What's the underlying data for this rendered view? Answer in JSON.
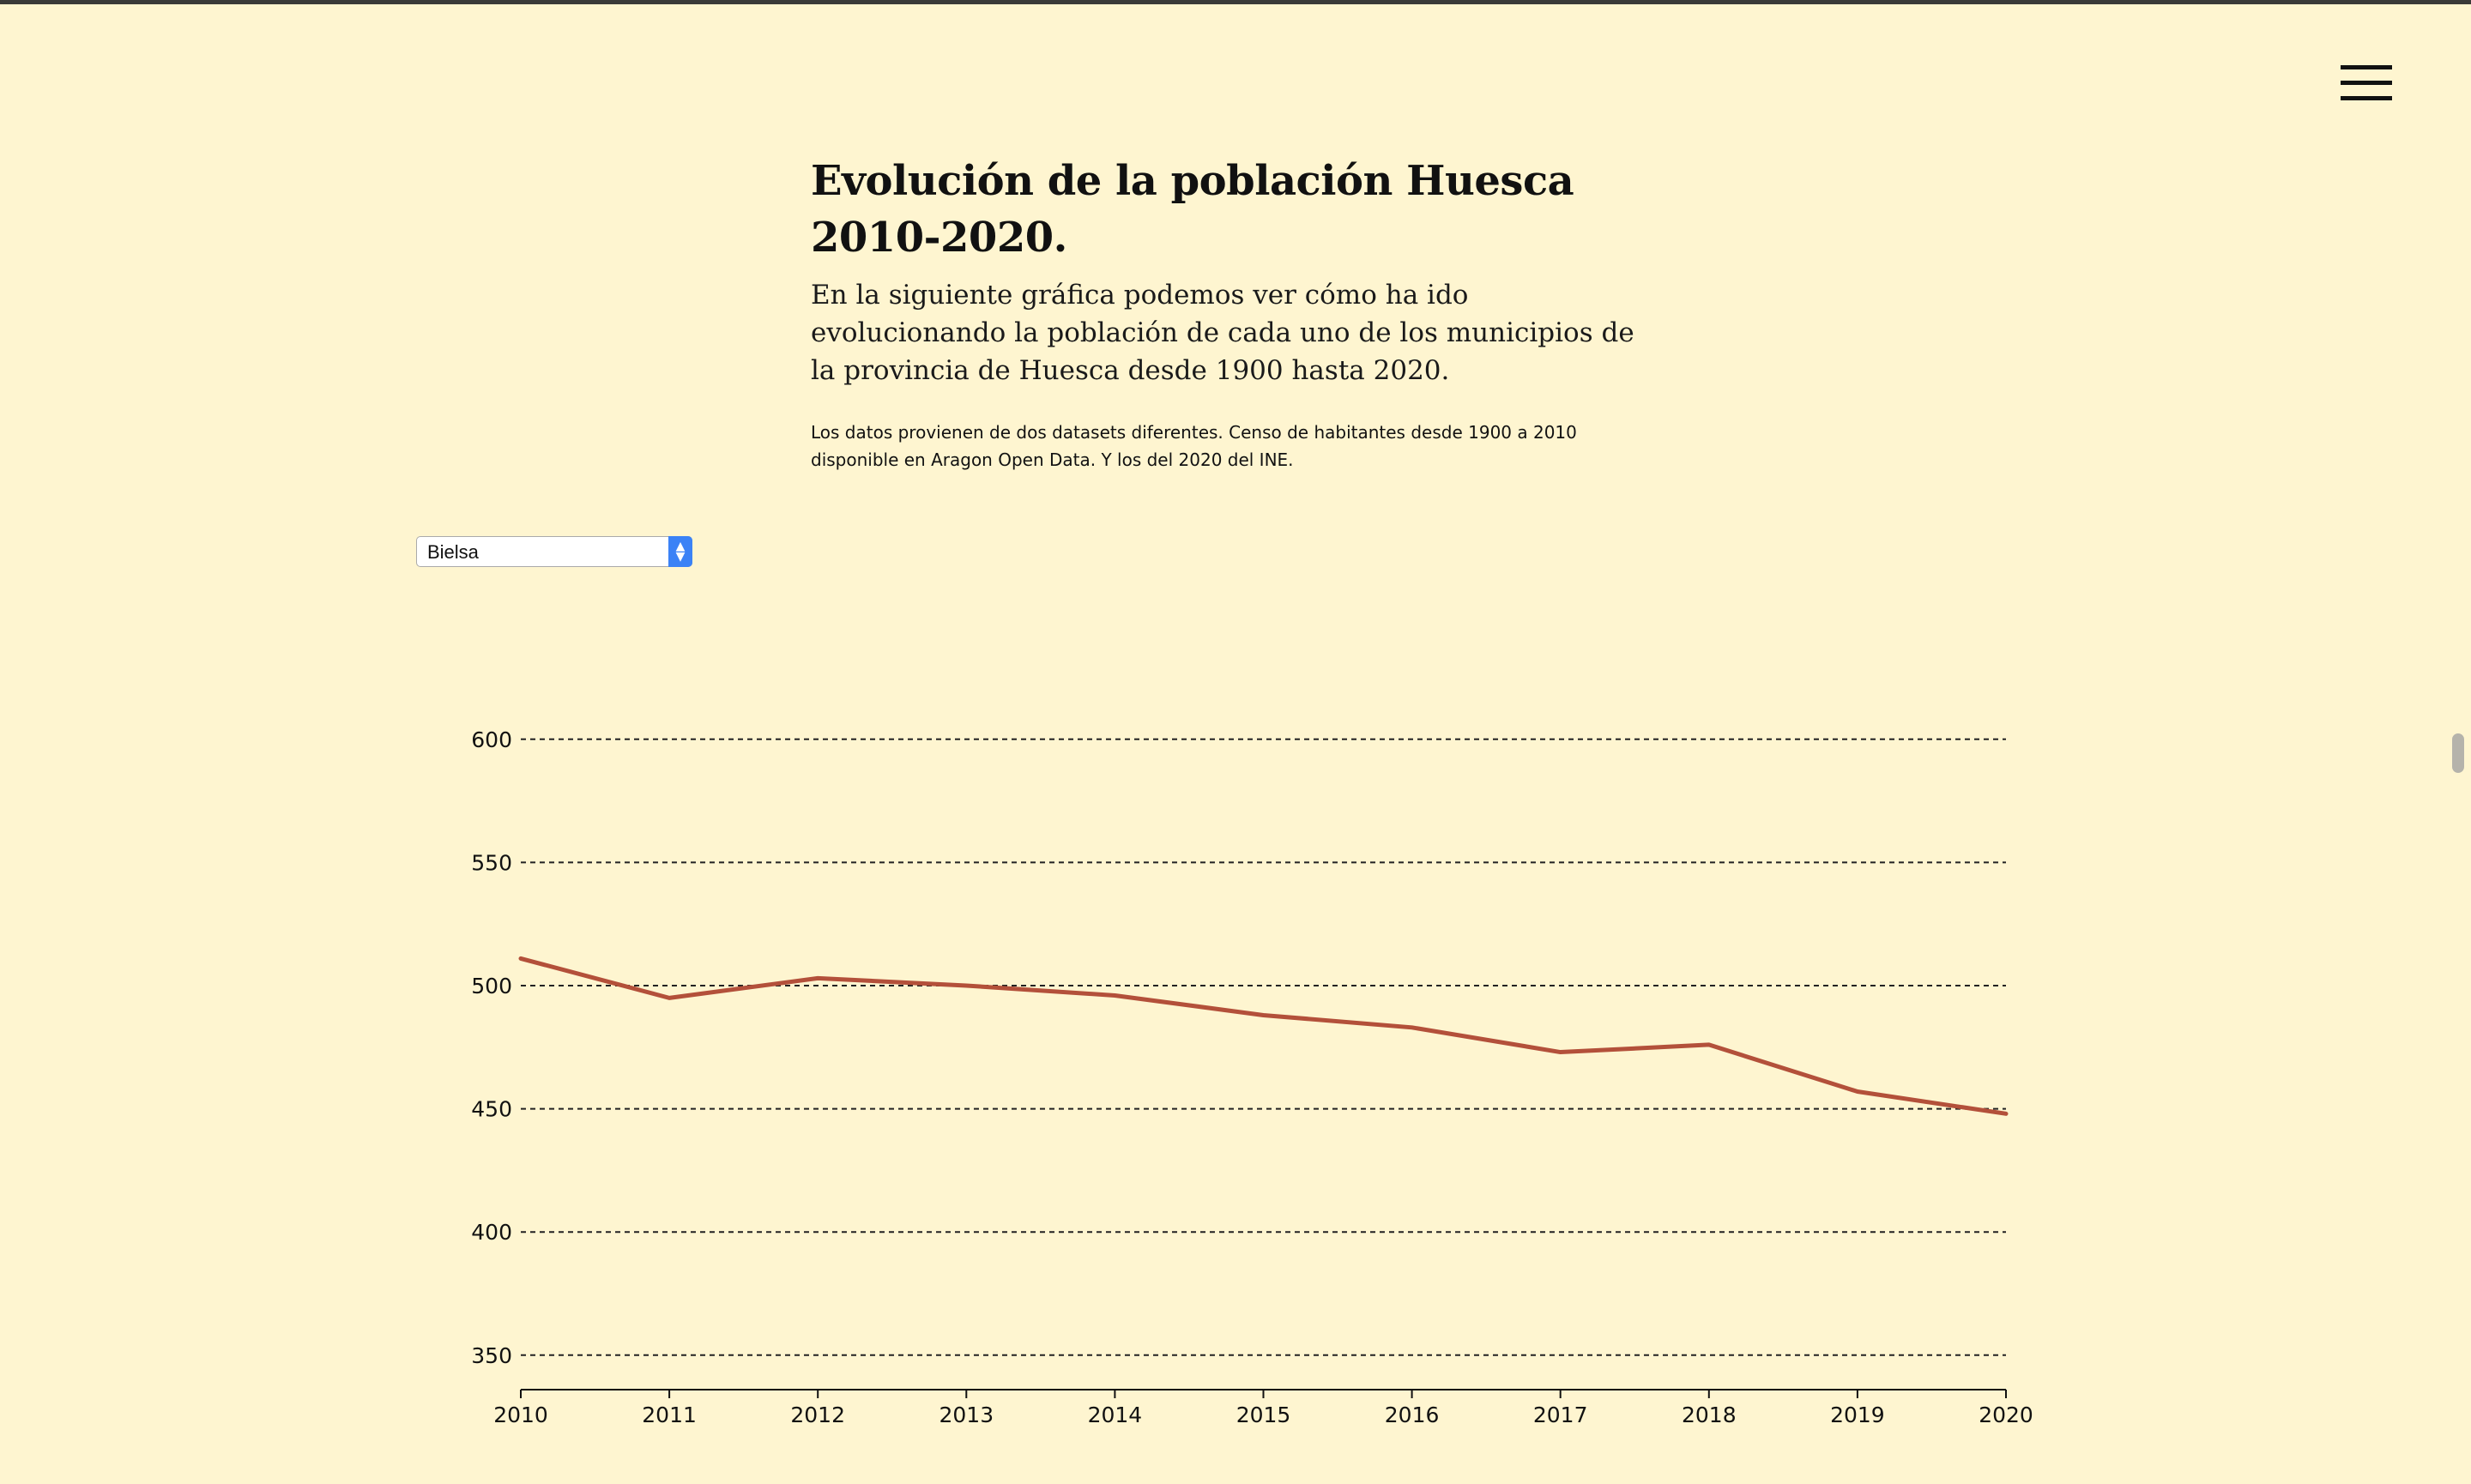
{
  "header": {
    "menu_icon": "hamburger-menu-icon"
  },
  "article": {
    "title": "Evolución de la población Huesca 2010-2020.",
    "intro": "En la siguiente gráfica podemos ver cómo ha ido evolucionando la población de cada uno de los municipios de la provincia de Huesca desde 1900 hasta 2020.",
    "source_note": "Los datos provienen de dos datasets diferentes. Censo de habitantes desde 1900 a 2010 disponible en Aragon Open Data. Y los del 2020 del INE."
  },
  "municipality_select": {
    "selected": "Bielsa",
    "options": [
      "Bielsa"
    ]
  },
  "colors": {
    "background": "#fef5d0",
    "line": "#b3503a",
    "grid": "#222222"
  },
  "chart_data": {
    "type": "line",
    "x": [
      2010,
      2011,
      2012,
      2013,
      2014,
      2015,
      2016,
      2017,
      2018,
      2019,
      2020
    ],
    "series": [
      {
        "values": [
          511,
          495,
          503,
          500,
          496,
          488,
          483,
          473,
          476,
          457,
          448
        ]
      }
    ],
    "x_ticks": [
      "2010",
      "2011",
      "2012",
      "2013",
      "2014",
      "2015",
      "2016",
      "2017",
      "2018",
      "2019",
      "2020"
    ],
    "y_ticks": [
      "350",
      "400",
      "450",
      "500",
      "550",
      "600"
    ],
    "xlim": [
      2010,
      2020
    ],
    "ylim": [
      336,
      625
    ],
    "grid": "horizontal-dashed",
    "legend": "none"
  }
}
